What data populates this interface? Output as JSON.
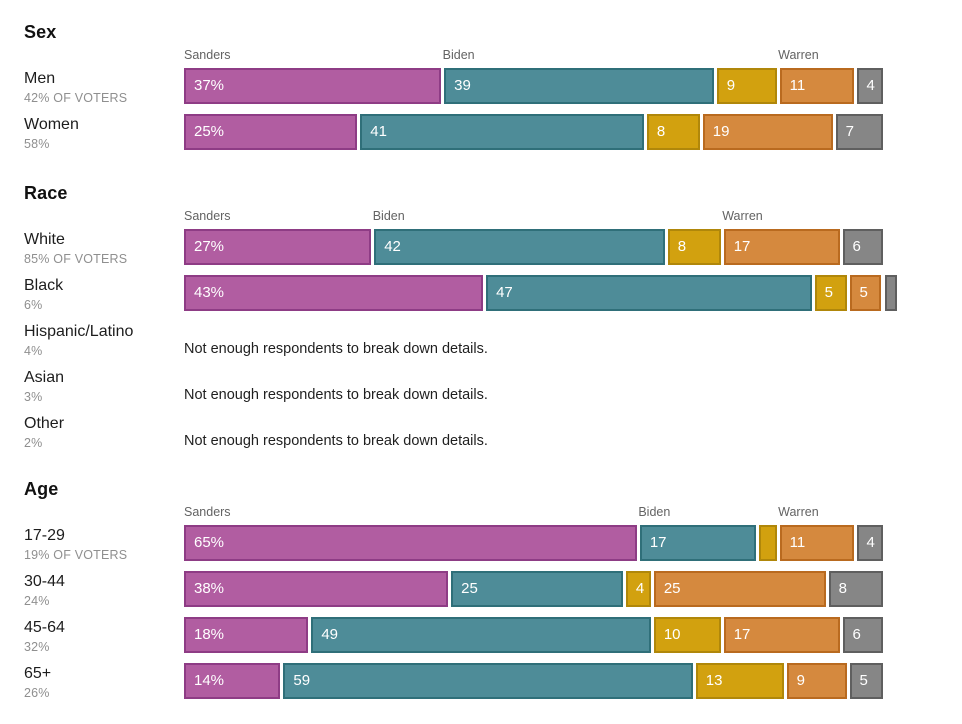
{
  "note_text": "Not enough respondents to break down details.",
  "colors": {
    "sanders": {
      "fill": "#b15da1",
      "border": "#8e3c85"
    },
    "biden": {
      "fill": "#4e8c98",
      "border": "#2f6f79"
    },
    "gold": {
      "fill": "#d2a10f",
      "border": "#b0870a"
    },
    "warren": {
      "fill": "#d5893e",
      "border": "#b96a1f"
    },
    "gray": {
      "fill": "#868686",
      "border": "#5f5f5f"
    }
  },
  "chart_data": {
    "type": "bar",
    "subtype": "stacked-horizontal",
    "unit": "percent",
    "xlim": [
      0,
      100
    ],
    "grid": false,
    "legend_style": "inline-labels-above-bars",
    "candidates_labeled": [
      "Sanders",
      "Biden",
      "Warren"
    ],
    "sections": [
      {
        "title": "Sex",
        "candidate_labels": [
          {
            "text": "Sanders",
            "at": 0
          },
          {
            "text": "Biden",
            "at": 37
          },
          {
            "text": "Warren",
            "at": 85
          }
        ],
        "rows": [
          {
            "label": "Men",
            "sublabel": "42% OF VOTERS",
            "segments": [
              {
                "key": "sanders",
                "value": 37,
                "text": "37%"
              },
              {
                "key": "biden",
                "value": 39,
                "text": "39"
              },
              {
                "key": "gold",
                "value": 9,
                "text": "9"
              },
              {
                "key": "warren",
                "value": 11,
                "text": "11"
              },
              {
                "key": "gray",
                "value": 4,
                "text": "4"
              }
            ]
          },
          {
            "label": "Women",
            "sublabel": "58%",
            "segments": [
              {
                "key": "sanders",
                "value": 25,
                "text": "25%"
              },
              {
                "key": "biden",
                "value": 41,
                "text": "41"
              },
              {
                "key": "gold",
                "value": 8,
                "text": "8"
              },
              {
                "key": "warren",
                "value": 19,
                "text": "19"
              },
              {
                "key": "gray",
                "value": 7,
                "text": "7"
              }
            ]
          }
        ]
      },
      {
        "title": "Race",
        "candidate_labels": [
          {
            "text": "Sanders",
            "at": 0
          },
          {
            "text": "Biden",
            "at": 27
          },
          {
            "text": "Warren",
            "at": 77
          }
        ],
        "rows": [
          {
            "label": "White",
            "sublabel": "85% OF VOTERS",
            "segments": [
              {
                "key": "sanders",
                "value": 27,
                "text": "27%"
              },
              {
                "key": "biden",
                "value": 42,
                "text": "42"
              },
              {
                "key": "gold",
                "value": 8,
                "text": "8"
              },
              {
                "key": "warren",
                "value": 17,
                "text": "17"
              },
              {
                "key": "gray",
                "value": 6,
                "text": "6"
              }
            ]
          },
          {
            "label": "Black",
            "sublabel": "6%",
            "segments": [
              {
                "key": "sanders",
                "value": 43,
                "text": "43%"
              },
              {
                "key": "biden",
                "value": 47,
                "text": "47"
              },
              {
                "key": "gold",
                "value": 5,
                "text": "5"
              },
              {
                "key": "warren",
                "value": 5,
                "text": "5"
              },
              {
                "key": "gray",
                "value": 0.5,
                "text": ""
              }
            ]
          },
          {
            "label": "Hispanic/Latino",
            "sublabel": "4%",
            "note": true
          },
          {
            "label": "Asian",
            "sublabel": "3%",
            "note": true
          },
          {
            "label": "Other",
            "sublabel": "2%",
            "note": true
          }
        ]
      },
      {
        "title": "Age",
        "candidate_labels": [
          {
            "text": "Sanders",
            "at": 0
          },
          {
            "text": "Biden",
            "at": 65
          },
          {
            "text": "Warren",
            "at": 85
          }
        ],
        "rows": [
          {
            "label": "17-29",
            "sublabel": "19% OF VOTERS",
            "segments": [
              {
                "key": "sanders",
                "value": 65,
                "text": "65%"
              },
              {
                "key": "biden",
                "value": 17,
                "text": "17"
              },
              {
                "key": "gold",
                "value": 3,
                "text": ""
              },
              {
                "key": "warren",
                "value": 11,
                "text": "11"
              },
              {
                "key": "gray",
                "value": 4,
                "text": "4"
              }
            ]
          },
          {
            "label": "30-44",
            "sublabel": "24%",
            "segments": [
              {
                "key": "sanders",
                "value": 38,
                "text": "38%"
              },
              {
                "key": "biden",
                "value": 25,
                "text": "25"
              },
              {
                "key": "gold",
                "value": 4,
                "text": "4"
              },
              {
                "key": "warren",
                "value": 25,
                "text": "25"
              },
              {
                "key": "gray",
                "value": 8,
                "text": "8"
              }
            ]
          },
          {
            "label": "45-64",
            "sublabel": "32%",
            "segments": [
              {
                "key": "sanders",
                "value": 18,
                "text": "18%"
              },
              {
                "key": "biden",
                "value": 49,
                "text": "49"
              },
              {
                "key": "gold",
                "value": 10,
                "text": "10"
              },
              {
                "key": "warren",
                "value": 17,
                "text": "17"
              },
              {
                "key": "gray",
                "value": 6,
                "text": "6"
              }
            ]
          },
          {
            "label": "65+",
            "sublabel": "26%",
            "segments": [
              {
                "key": "sanders",
                "value": 14,
                "text": "14%"
              },
              {
                "key": "biden",
                "value": 59,
                "text": "59"
              },
              {
                "key": "gold",
                "value": 13,
                "text": "13"
              },
              {
                "key": "warren",
                "value": 9,
                "text": "9"
              },
              {
                "key": "gray",
                "value": 5,
                "text": "5"
              }
            ]
          }
        ]
      }
    ]
  }
}
